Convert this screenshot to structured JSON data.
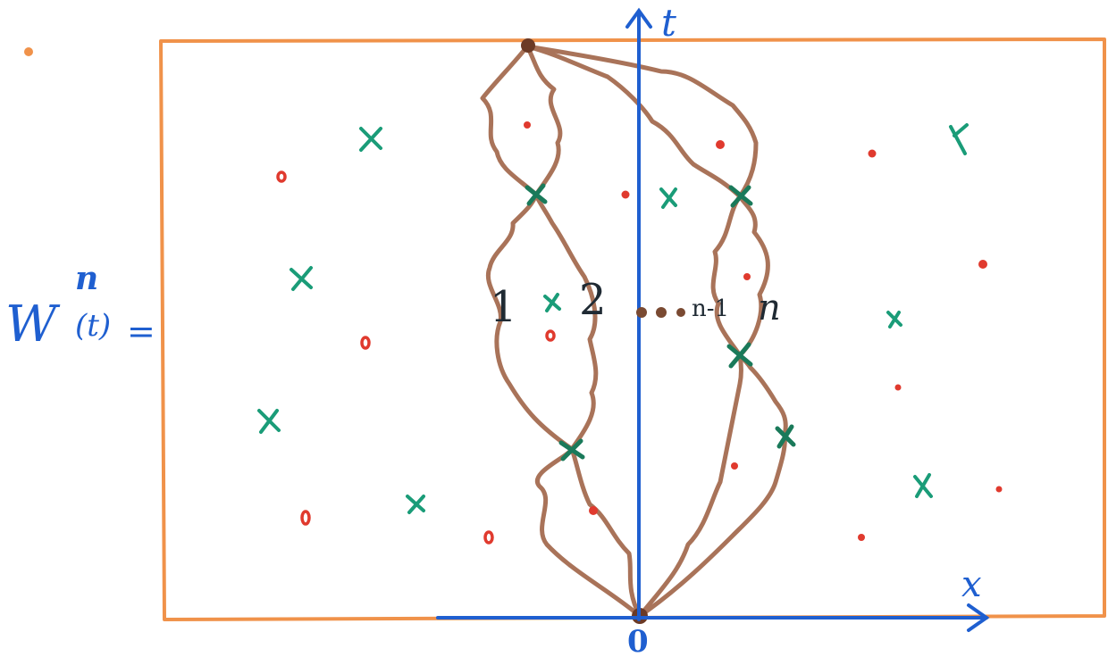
{
  "formula": {
    "symbol": "W",
    "superscript": "n",
    "argument": "(t)",
    "equals": "="
  },
  "axes": {
    "t_label": "t",
    "x_label": "x",
    "origin_label": "0"
  },
  "path_labels": {
    "first": "1",
    "second": "2",
    "dots": "...",
    "second_last": "n-1",
    "last": "n"
  },
  "colors": {
    "frame": "#f0924a",
    "axis": "#1f5fd0",
    "paths": "#a2684c",
    "crosses": "#1a9c78",
    "dots": "#e03a2e",
    "text": "#1f2a33"
  }
}
